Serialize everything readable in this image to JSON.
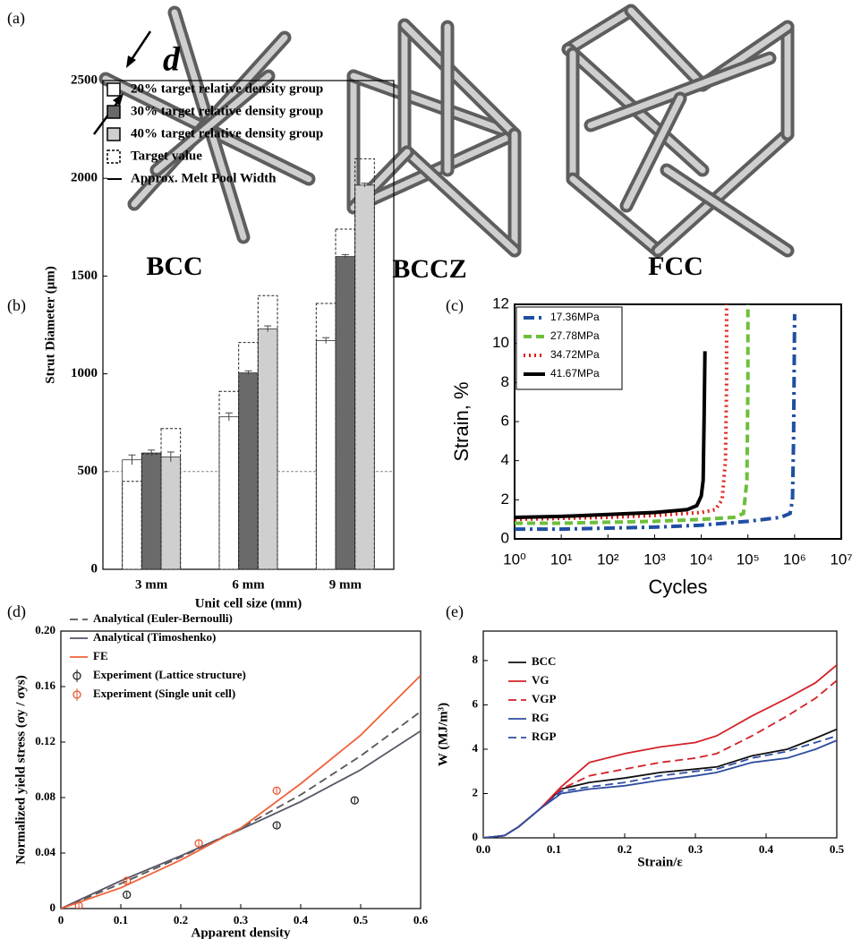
{
  "structures": {
    "panel_label": "(a)",
    "labels": [
      "BCC",
      "BCCZ",
      "FCC"
    ],
    "dimension_label": "d"
  },
  "chart_data": [
    {
      "type": "bar",
      "panel_label": "(b)",
      "x_label": "Unit cell size (mm)",
      "y_label": "Strut Diameter (μm)",
      "categories": [
        "3 mm",
        "6 mm",
        "9 mm"
      ],
      "series": [
        {
          "name": "20% target relative density group",
          "color": "#ffffff",
          "values": [
            560,
            780,
            1170
          ],
          "errors": [
            25,
            20,
            15
          ],
          "targets": [
            450,
            910,
            1360
          ]
        },
        {
          "name": "30% target relative density group",
          "color": "#6a6a6a",
          "values": [
            595,
            1005,
            1600
          ],
          "errors": [
            15,
            10,
            10
          ],
          "targets": [
            590,
            1160,
            1740
          ]
        },
        {
          "name": "40% target relative density group",
          "color": "#cfcfcf",
          "values": [
            575,
            1230,
            1965
          ],
          "errors": [
            25,
            15,
            10
          ],
          "targets": [
            720,
            1400,
            2100
          ]
        }
      ],
      "target_label": "Target value",
      "reference_line": {
        "name": "Approx. Melt Pool Width",
        "value": 500
      },
      "ylim": [
        0,
        2500
      ],
      "yticks": [
        0,
        500,
        1000,
        1500,
        2000,
        2500
      ],
      "grid": false
    },
    {
      "type": "line",
      "panel_label": "(c)",
      "x_label": "Cycles",
      "y_label": "Strain, %",
      "xscale": "log",
      "series": [
        {
          "name": "17.36MPa",
          "color": "#1f4fa3",
          "dash": "dashdot",
          "x": [
            1,
            10,
            100,
            1000,
            10000,
            100000,
            500000,
            800000,
            900000,
            950000,
            1000000
          ],
          "values": [
            0.5,
            0.5,
            0.55,
            0.6,
            0.7,
            0.9,
            1.1,
            1.3,
            2,
            5,
            11.5
          ]
        },
        {
          "name": "27.78MPa",
          "color": "#6cbf3a",
          "dash": "dashed",
          "x": [
            1,
            10,
            100,
            1000,
            10000,
            50000,
            80000,
            95000,
            100000,
            100000
          ],
          "values": [
            0.8,
            0.8,
            0.85,
            0.9,
            1.0,
            1.1,
            1.3,
            3,
            8,
            12
          ]
        },
        {
          "name": "34.72MPa",
          "color": "#e0201a",
          "dash": "dotted",
          "x": [
            1,
            10,
            100,
            1000,
            10000,
            20000,
            28000,
            33000,
            35000,
            35000
          ],
          "values": [
            1.0,
            1.05,
            1.1,
            1.2,
            1.35,
            1.5,
            2,
            4,
            8,
            12
          ]
        },
        {
          "name": "41.67MPa",
          "color": "#000000",
          "dash": "solid",
          "x": [
            1,
            10,
            100,
            1000,
            5000,
            8000,
            10000,
            11000,
            11500,
            12000
          ],
          "values": [
            1.1,
            1.15,
            1.25,
            1.35,
            1.5,
            1.7,
            2.2,
            3,
            6,
            9.6
          ]
        }
      ],
      "xlim": [
        1,
        10000000
      ],
      "xticks": [
        {
          "value": 1,
          "label": "10⁰"
        },
        {
          "value": 10,
          "label": "10¹"
        },
        {
          "value": 100,
          "label": "10²"
        },
        {
          "value": 1000,
          "label": "10³"
        },
        {
          "value": 10000,
          "label": "10⁴"
        },
        {
          "value": 100000,
          "label": "10⁵"
        },
        {
          "value": 1000000,
          "label": "10⁶"
        },
        {
          "value": 10000000,
          "label": "10⁷"
        }
      ],
      "ylim": [
        0,
        12
      ],
      "yticks": [
        0,
        2,
        4,
        6,
        8,
        10,
        12
      ],
      "grid": false
    },
    {
      "type": "line",
      "panel_label": "(d)",
      "x_label": "Apparent density",
      "y_label": "Normalized yield stress (σy / σys)",
      "series": [
        {
          "name": "Analytical (Euler-Bernoulli)",
          "color": "#555555",
          "dash": "dashed",
          "x": [
            0,
            0.1,
            0.2,
            0.3,
            0.4,
            0.5,
            0.6
          ],
          "values": [
            0,
            0.018,
            0.037,
            0.058,
            0.082,
            0.11,
            0.142
          ]
        },
        {
          "name": "Analytical (Timoshenko)",
          "color": "#555566",
          "dash": "solid",
          "x": [
            0,
            0.1,
            0.2,
            0.3,
            0.4,
            0.5,
            0.6
          ],
          "values": [
            0,
            0.02,
            0.038,
            0.057,
            0.077,
            0.1,
            0.128
          ]
        },
        {
          "name": "FE",
          "color": "#f0623a",
          "dash": "solid",
          "x": [
            0,
            0.1,
            0.2,
            0.3,
            0.4,
            0.5,
            0.6
          ],
          "values": [
            0,
            0.015,
            0.035,
            0.058,
            0.09,
            0.125,
            0.168
          ]
        },
        {
          "name": "Experiment (Lattice structure)",
          "color": "#222222",
          "style": "markers",
          "x": [
            0.11,
            0.36,
            0.49
          ],
          "values": [
            0.01,
            0.06,
            0.078
          ],
          "errors": [
            0.002,
            0.002,
            0.002
          ]
        },
        {
          "name": "Experiment (Single unit cell)",
          "color": "#e8552f",
          "style": "markers",
          "x": [
            0.03,
            0.11,
            0.23,
            0.36
          ],
          "values": [
            0.002,
            0.02,
            0.047,
            0.085
          ],
          "errors": [
            0.002,
            0.002,
            0.003,
            0.002
          ]
        }
      ],
      "xlim": [
        0,
        0.6
      ],
      "xticks": [
        0,
        0.1,
        0.2,
        0.3,
        0.4,
        0.5,
        0.6
      ],
      "ylim": [
        0,
        0.2
      ],
      "yticks": [
        0,
        0.04,
        0.08,
        0.12,
        0.16,
        {
          "value": 0.2,
          "label": "0.20"
        }
      ],
      "grid": false
    },
    {
      "type": "line",
      "panel_label": "(e)",
      "x_label": "Strain/ε",
      "y_label": "W (MJ/m³)",
      "series": [
        {
          "name": "BCC",
          "color": "#111111",
          "dash": "solid",
          "x": [
            0,
            0.03,
            0.05,
            0.08,
            0.11,
            0.15,
            0.2,
            0.25,
            0.3,
            0.33,
            0.38,
            0.43,
            0.47,
            0.5
          ],
          "values": [
            0,
            0.1,
            0.5,
            1.3,
            2.2,
            2.5,
            2.7,
            2.95,
            3.1,
            3.2,
            3.7,
            4.0,
            4.5,
            4.9
          ]
        },
        {
          "name": "VG",
          "color": "#d42027",
          "dash": "solid",
          "x": [
            0,
            0.03,
            0.05,
            0.08,
            0.11,
            0.15,
            0.2,
            0.25,
            0.3,
            0.33,
            0.38,
            0.43,
            0.47,
            0.5
          ],
          "values": [
            0,
            0.1,
            0.5,
            1.3,
            2.3,
            3.4,
            3.8,
            4.1,
            4.3,
            4.6,
            5.5,
            6.3,
            7.0,
            7.8
          ]
        },
        {
          "name": "VGP",
          "color": "#d42027",
          "dash": "dashed",
          "x": [
            0,
            0.03,
            0.05,
            0.08,
            0.11,
            0.15,
            0.2,
            0.25,
            0.3,
            0.33,
            0.38,
            0.43,
            0.47,
            0.5
          ],
          "values": [
            0,
            0.1,
            0.5,
            1.3,
            2.2,
            2.8,
            3.1,
            3.4,
            3.6,
            3.8,
            4.6,
            5.5,
            6.3,
            7.1
          ]
        },
        {
          "name": "RG",
          "color": "#2f4da0",
          "dash": "solid",
          "x": [
            0,
            0.03,
            0.05,
            0.08,
            0.11,
            0.15,
            0.2,
            0.25,
            0.3,
            0.33,
            0.38,
            0.43,
            0.47,
            0.5
          ],
          "values": [
            0,
            0.1,
            0.5,
            1.3,
            2.0,
            2.2,
            2.35,
            2.6,
            2.8,
            2.95,
            3.4,
            3.6,
            4.0,
            4.4
          ]
        },
        {
          "name": "RGP",
          "color": "#2f4da0",
          "dash": "dashed",
          "x": [
            0,
            0.03,
            0.05,
            0.08,
            0.11,
            0.15,
            0.2,
            0.25,
            0.3,
            0.33,
            0.38,
            0.43,
            0.47,
            0.5
          ],
          "values": [
            0,
            0.1,
            0.5,
            1.3,
            2.1,
            2.3,
            2.5,
            2.8,
            3.0,
            3.1,
            3.6,
            3.9,
            4.3,
            4.6
          ]
        }
      ],
      "xlim": [
        0,
        0.5
      ],
      "xticks": [
        {
          "value": 0,
          "label": "0.0"
        },
        0.1,
        0.2,
        0.3,
        0.4,
        0.5
      ],
      "ylim": [
        0,
        9.33
      ],
      "yticks": [
        0,
        2,
        4,
        6,
        8
      ],
      "grid": false
    }
  ]
}
